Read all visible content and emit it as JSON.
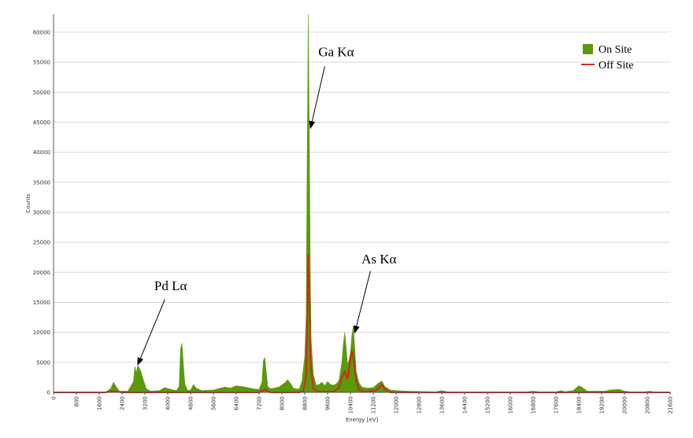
{
  "chart_data": {
    "type": "area",
    "xlabel": "Energy [eV]",
    "ylabel": "Counts",
    "xlim": [
      0,
      21600
    ],
    "ylim": [
      0,
      63000
    ],
    "grid": true,
    "x_ticks": [
      0,
      800,
      1600,
      2400,
      3200,
      4000,
      4800,
      5600,
      6400,
      7200,
      8000,
      8800,
      9600,
      10400,
      11200,
      12000,
      12800,
      13600,
      14400,
      15200,
      16000,
      16800,
      17600,
      18400,
      19200,
      20000,
      20800,
      21600
    ],
    "y_ticks": [
      0,
      5000,
      10000,
      15000,
      20000,
      25000,
      30000,
      35000,
      40000,
      45000,
      50000,
      55000,
      60000
    ],
    "legend_position": "top-right",
    "series": [
      {
        "name": "On Site",
        "color": "#5a9a0a",
        "style": "filled",
        "points": [
          [
            0,
            0
          ],
          [
            1800,
            0
          ],
          [
            2000,
            600
          ],
          [
            2100,
            1700
          ],
          [
            2200,
            900
          ],
          [
            2300,
            200
          ],
          [
            2600,
            200
          ],
          [
            2800,
            1800
          ],
          [
            2850,
            4300
          ],
          [
            2900,
            3200
          ],
          [
            2950,
            4500
          ],
          [
            3050,
            3600
          ],
          [
            3150,
            2000
          ],
          [
            3250,
            600
          ],
          [
            3400,
            200
          ],
          [
            3700,
            300
          ],
          [
            3900,
            800
          ],
          [
            4100,
            500
          ],
          [
            4300,
            300
          ],
          [
            4400,
            1000
          ],
          [
            4450,
            7200
          ],
          [
            4500,
            8200
          ],
          [
            4550,
            4500
          ],
          [
            4600,
            1400
          ],
          [
            4700,
            300
          ],
          [
            4800,
            400
          ],
          [
            4900,
            1300
          ],
          [
            5000,
            700
          ],
          [
            5200,
            300
          ],
          [
            5600,
            400
          ],
          [
            6000,
            900
          ],
          [
            6200,
            700
          ],
          [
            6400,
            1100
          ],
          [
            6700,
            900
          ],
          [
            7000,
            600
          ],
          [
            7200,
            500
          ],
          [
            7300,
            1700
          ],
          [
            7350,
            5300
          ],
          [
            7400,
            5800
          ],
          [
            7450,
            3500
          ],
          [
            7500,
            1000
          ],
          [
            7600,
            600
          ],
          [
            7900,
            900
          ],
          [
            8100,
            1600
          ],
          [
            8200,
            2100
          ],
          [
            8300,
            1500
          ],
          [
            8400,
            700
          ],
          [
            8600,
            500
          ],
          [
            8700,
            1800
          ],
          [
            8800,
            6000
          ],
          [
            8850,
            13000
          ],
          [
            8880,
            36000
          ],
          [
            8900,
            48000
          ],
          [
            8920,
            63000
          ],
          [
            8940,
            53000
          ],
          [
            8960,
            42000
          ],
          [
            8990,
            22000
          ],
          [
            9020,
            9000
          ],
          [
            9100,
            3000
          ],
          [
            9200,
            1200
          ],
          [
            9300,
            1300
          ],
          [
            9400,
            1700
          ],
          [
            9500,
            1100
          ],
          [
            9600,
            1800
          ],
          [
            9700,
            1300
          ],
          [
            9800,
            1200
          ],
          [
            9900,
            1400
          ],
          [
            10000,
            2000
          ],
          [
            10100,
            5000
          ],
          [
            10150,
            8000
          ],
          [
            10200,
            10000
          ],
          [
            10250,
            7500
          ],
          [
            10300,
            4500
          ],
          [
            10400,
            6500
          ],
          [
            10450,
            9500
          ],
          [
            10500,
            11000
          ],
          [
            10550,
            7500
          ],
          [
            10600,
            3500
          ],
          [
            10700,
            1600
          ],
          [
            10800,
            900
          ],
          [
            11000,
            700
          ],
          [
            11200,
            800
          ],
          [
            11400,
            1600
          ],
          [
            11500,
            1900
          ],
          [
            11600,
            1000
          ],
          [
            11800,
            400
          ],
          [
            12000,
            300
          ],
          [
            12400,
            200
          ],
          [
            13400,
            100
          ],
          [
            13600,
            300
          ],
          [
            13800,
            100
          ],
          [
            16600,
            100
          ],
          [
            16800,
            200
          ],
          [
            17000,
            100
          ],
          [
            17600,
            100
          ],
          [
            17800,
            300
          ],
          [
            17900,
            100
          ],
          [
            18200,
            300
          ],
          [
            18400,
            1100
          ],
          [
            18500,
            900
          ],
          [
            18700,
            200
          ],
          [
            19300,
            200
          ],
          [
            19500,
            400
          ],
          [
            19800,
            500
          ],
          [
            20000,
            200
          ],
          [
            20200,
            100
          ],
          [
            20700,
            100
          ],
          [
            20900,
            200
          ],
          [
            21100,
            0
          ],
          [
            21600,
            0
          ]
        ]
      },
      {
        "name": "Off Site",
        "color": "#d0281e",
        "style": "line",
        "points": [
          [
            0,
            0
          ],
          [
            1800,
            0
          ],
          [
            2100,
            200
          ],
          [
            2400,
            0
          ],
          [
            7200,
            0
          ],
          [
            7400,
            500
          ],
          [
            7600,
            0
          ],
          [
            8600,
            0
          ],
          [
            8750,
            200
          ],
          [
            8850,
            3000
          ],
          [
            8900,
            15000
          ],
          [
            8920,
            23000
          ],
          [
            8960,
            16000
          ],
          [
            9000,
            5000
          ],
          [
            9100,
            600
          ],
          [
            9300,
            100
          ],
          [
            9800,
            100
          ],
          [
            10000,
            800
          ],
          [
            10100,
            2500
          ],
          [
            10200,
            3500
          ],
          [
            10300,
            2200
          ],
          [
            10400,
            5500
          ],
          [
            10450,
            7000
          ],
          [
            10500,
            6000
          ],
          [
            10600,
            2000
          ],
          [
            10700,
            400
          ],
          [
            10900,
            100
          ],
          [
            11300,
            300
          ],
          [
            11500,
            1300
          ],
          [
            11600,
            500
          ],
          [
            11800,
            0
          ],
          [
            21600,
            0
          ]
        ]
      }
    ],
    "annotations": [
      {
        "text": "Ga Kα",
        "label_at": [
          9900,
          56000
        ],
        "arrow_from": [
          9500,
          54300
        ],
        "arrow_to": [
          9000,
          44000
        ]
      },
      {
        "text": "As Kα",
        "label_at": [
          11400,
          21500
        ],
        "arrow_from": [
          11100,
          20200
        ],
        "arrow_to": [
          10550,
          9900
        ]
      },
      {
        "text": "Pd Lα",
        "label_at": [
          4100,
          17000
        ],
        "arrow_from": [
          3900,
          15500
        ],
        "arrow_to": [
          2950,
          4600
        ]
      }
    ]
  }
}
